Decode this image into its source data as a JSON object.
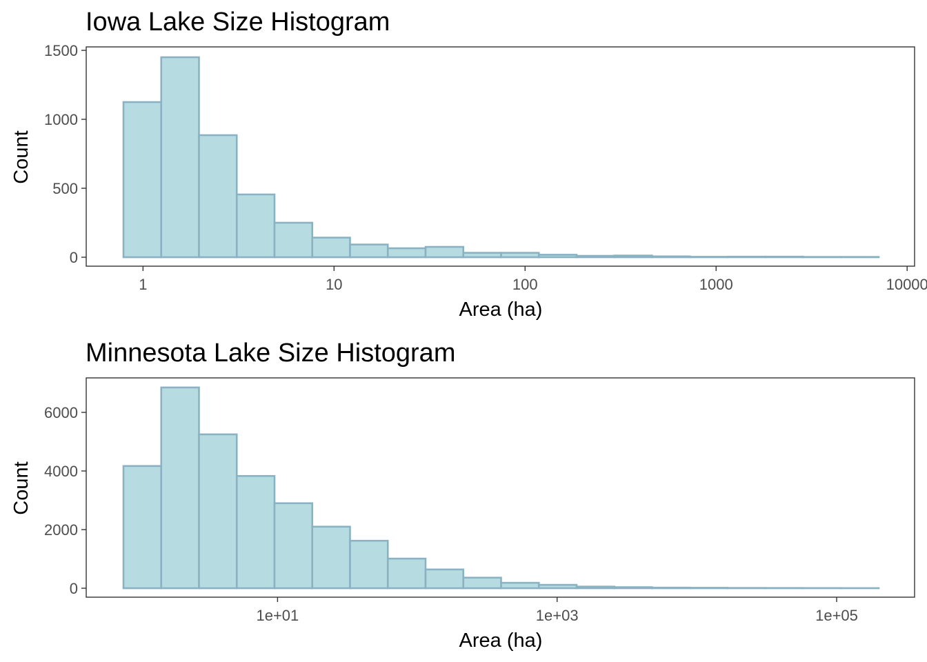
{
  "colors": {
    "bar_fill": "#b6dbe0",
    "bar_stroke": "#8ab2c3",
    "panel_border": "#333333",
    "tick_text": "#4d4d4d"
  },
  "chart_data": [
    {
      "type": "bar",
      "title": "Iowa Lake Size Histogram",
      "xlabel": "Area (ha)",
      "ylabel": "Count",
      "x_scale": "log10",
      "x_ticks": [
        1,
        10,
        100,
        1000,
        10000
      ],
      "x_tick_labels": [
        "1",
        "10",
        "100",
        "1000",
        "10000"
      ],
      "y_ticks": [
        0,
        500,
        1000,
        1500
      ],
      "y_tick_labels": [
        "0",
        "500",
        "1000",
        "1500"
      ],
      "xlim": [
        0.5,
        10000
      ],
      "ylim": [
        0,
        1500
      ],
      "grid": false,
      "bin_range": [
        0.79,
        7100
      ],
      "values": [
        1125,
        1450,
        885,
        455,
        250,
        142,
        92,
        65,
        75,
        32,
        32,
        18,
        10,
        12,
        6,
        3,
        4,
        4,
        2,
        2
      ]
    },
    {
      "type": "bar",
      "title": "Minnesota Lake Size Histogram",
      "xlabel": "Area (ha)",
      "ylabel": "Count",
      "x_scale": "log10",
      "x_ticks": [
        10,
        1000,
        100000
      ],
      "x_tick_labels": [
        "1e+01",
        "1e+03",
        "1e+05"
      ],
      "y_ticks": [
        0,
        2000,
        4000,
        6000
      ],
      "y_tick_labels": [
        "0",
        "2000",
        "4000",
        "6000"
      ],
      "xlim": [
        0.5,
        250000
      ],
      "ylim": [
        0,
        7000
      ],
      "grid": false,
      "bin_range": [
        0.79,
        200000
      ],
      "values": [
        4170,
        6850,
        5250,
        3830,
        2900,
        2100,
        1620,
        1010,
        640,
        360,
        185,
        115,
        55,
        35,
        20,
        14,
        9,
        7,
        5,
        3
      ]
    }
  ]
}
